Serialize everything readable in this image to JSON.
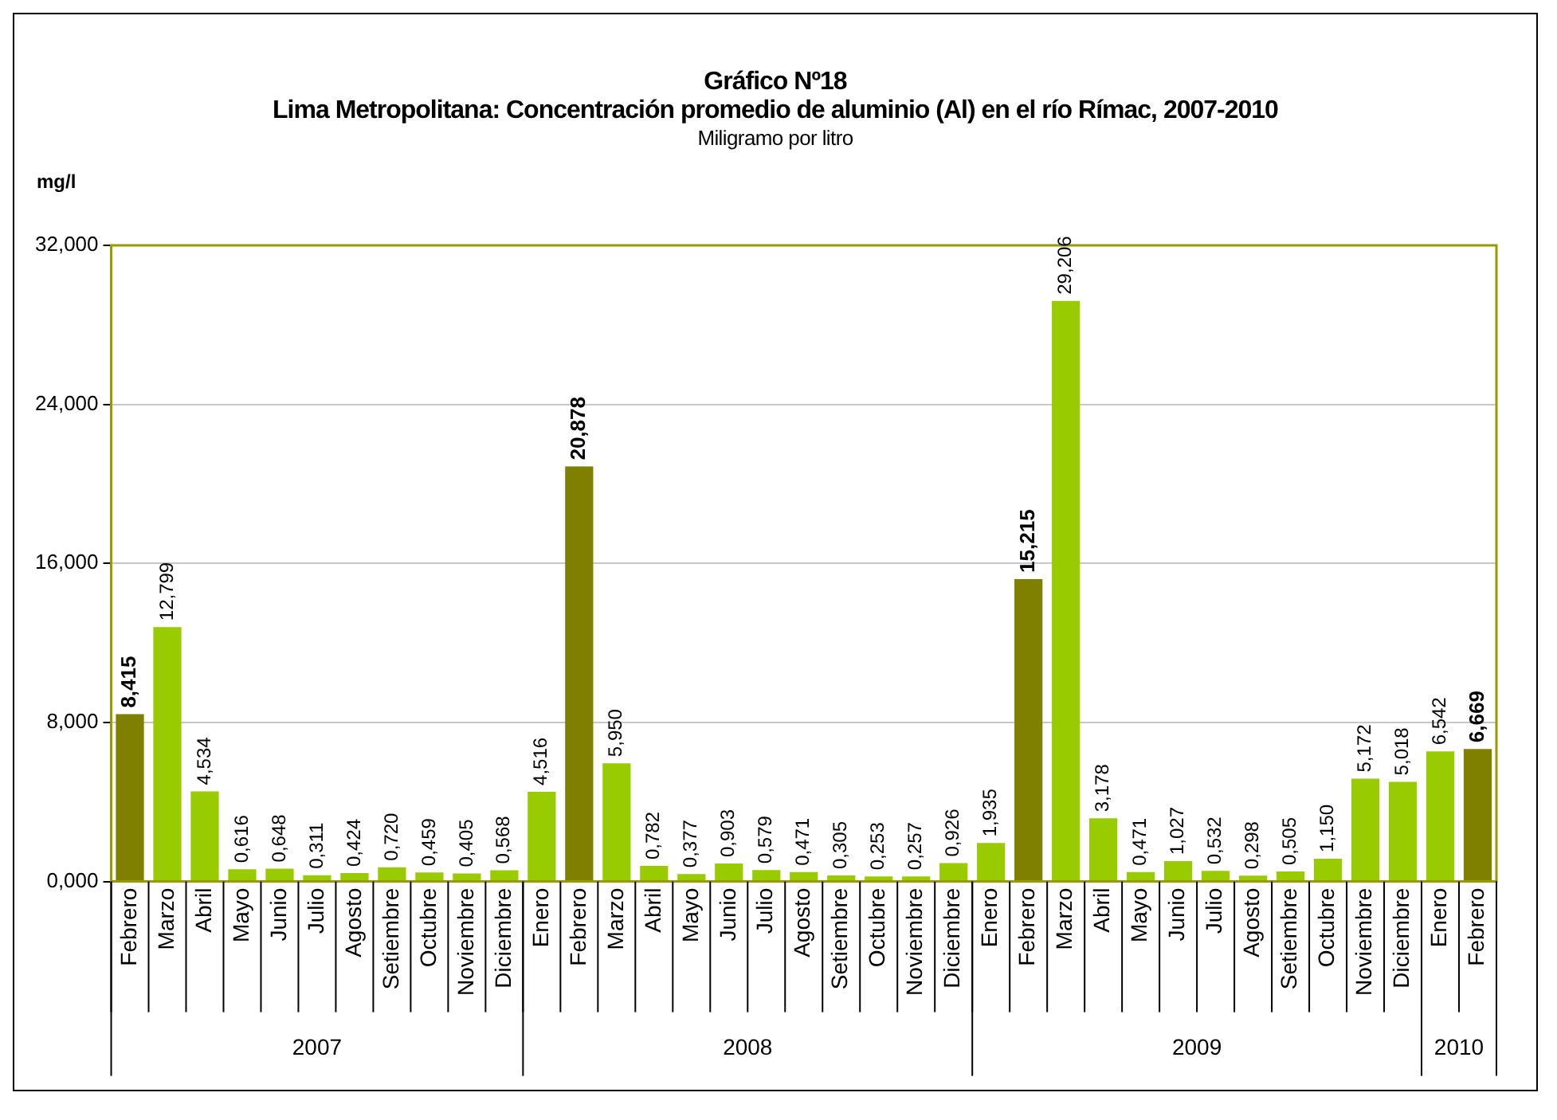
{
  "chart_data": {
    "type": "bar",
    "title": "Gráfico Nº18",
    "subtitle": "Lima Metropolitana: Concentración promedio de aluminio (Al) en el río Rímac, 2007-2010",
    "ylabel": "mg/l",
    "annotations": [
      "Miligramo por litro",
      "2007",
      "2008",
      "2009",
      "2010"
    ],
    "categories": [
      "Febrero",
      "Marzo",
      "Abril",
      "Mayo",
      "Junio",
      "Julio",
      "Agosto",
      "Setiembre",
      "Octubre",
      "Noviembre",
      "Diciembre",
      "Enero",
      "Febrero",
      "Marzo",
      "Abril",
      "Mayo",
      "Junio",
      "Julio",
      "Agosto",
      "Setiembre",
      "Octubre",
      "Noviembre",
      "Diciembre",
      "Enero",
      "Febrero",
      "Marzo",
      "Abril",
      "Mayo",
      "Junio",
      "Julio",
      "Agosto",
      "Setiembre",
      "Octubre",
      "Noviembre",
      "Diciembre",
      "Enero",
      "Febrero"
    ],
    "values": [
      8.415,
      12.799,
      4.534,
      0.616,
      0.648,
      0.311,
      0.424,
      0.72,
      0.459,
      0.405,
      0.568,
      4.516,
      20.878,
      5.95,
      0.782,
      0.377,
      0.903,
      0.579,
      0.471,
      0.305,
      0.253,
      0.257,
      0.926,
      1.935,
      15.215,
      29.206,
      3.178,
      0.471,
      1.027,
      0.532,
      0.298,
      0.505,
      1.15,
      5.172,
      5.018,
      6.542,
      6.669
    ],
    "value_labels": [
      "8,415",
      "12,799",
      "4,534",
      "0,616",
      "0,648",
      "0,311",
      "0,424",
      "0,720",
      "0,459",
      "0,405",
      "0,568",
      "4,516",
      "20,878",
      "5,950",
      "0,782",
      "0,377",
      "0,903",
      "0,579",
      "0,471",
      "0,305",
      "0,253",
      "0,257",
      "0,926",
      "1,935",
      "15,215",
      "29,206",
      "3,178",
      "0,471",
      "1,027",
      "0,532",
      "0,298",
      "0,505",
      "1,150",
      "5,172",
      "5,018",
      "6,542",
      "6,669"
    ],
    "colors": [
      "#808000",
      "#99cc00",
      "#99cc00",
      "#99cc00",
      "#99cc00",
      "#99cc00",
      "#99cc00",
      "#99cc00",
      "#99cc00",
      "#99cc00",
      "#99cc00",
      "#99cc00",
      "#808000",
      "#99cc00",
      "#99cc00",
      "#99cc00",
      "#99cc00",
      "#99cc00",
      "#99cc00",
      "#99cc00",
      "#99cc00",
      "#99cc00",
      "#99cc00",
      "#99cc00",
      "#808000",
      "#99cc00",
      "#99cc00",
      "#99cc00",
      "#99cc00",
      "#99cc00",
      "#99cc00",
      "#99cc00",
      "#99cc00",
      "#99cc00",
      "#99cc00",
      "#99cc00",
      "#808000"
    ],
    "ylim": [
      0,
      32
    ],
    "yticks": [
      {
        "value": 0,
        "label": "0,000"
      },
      {
        "value": 8,
        "label": "8,000"
      },
      {
        "value": 16,
        "label": "16,000"
      },
      {
        "value": 24,
        "label": "24,000"
      },
      {
        "value": 32,
        "label": "32,000"
      }
    ],
    "grid": "y",
    "legend": false
  }
}
